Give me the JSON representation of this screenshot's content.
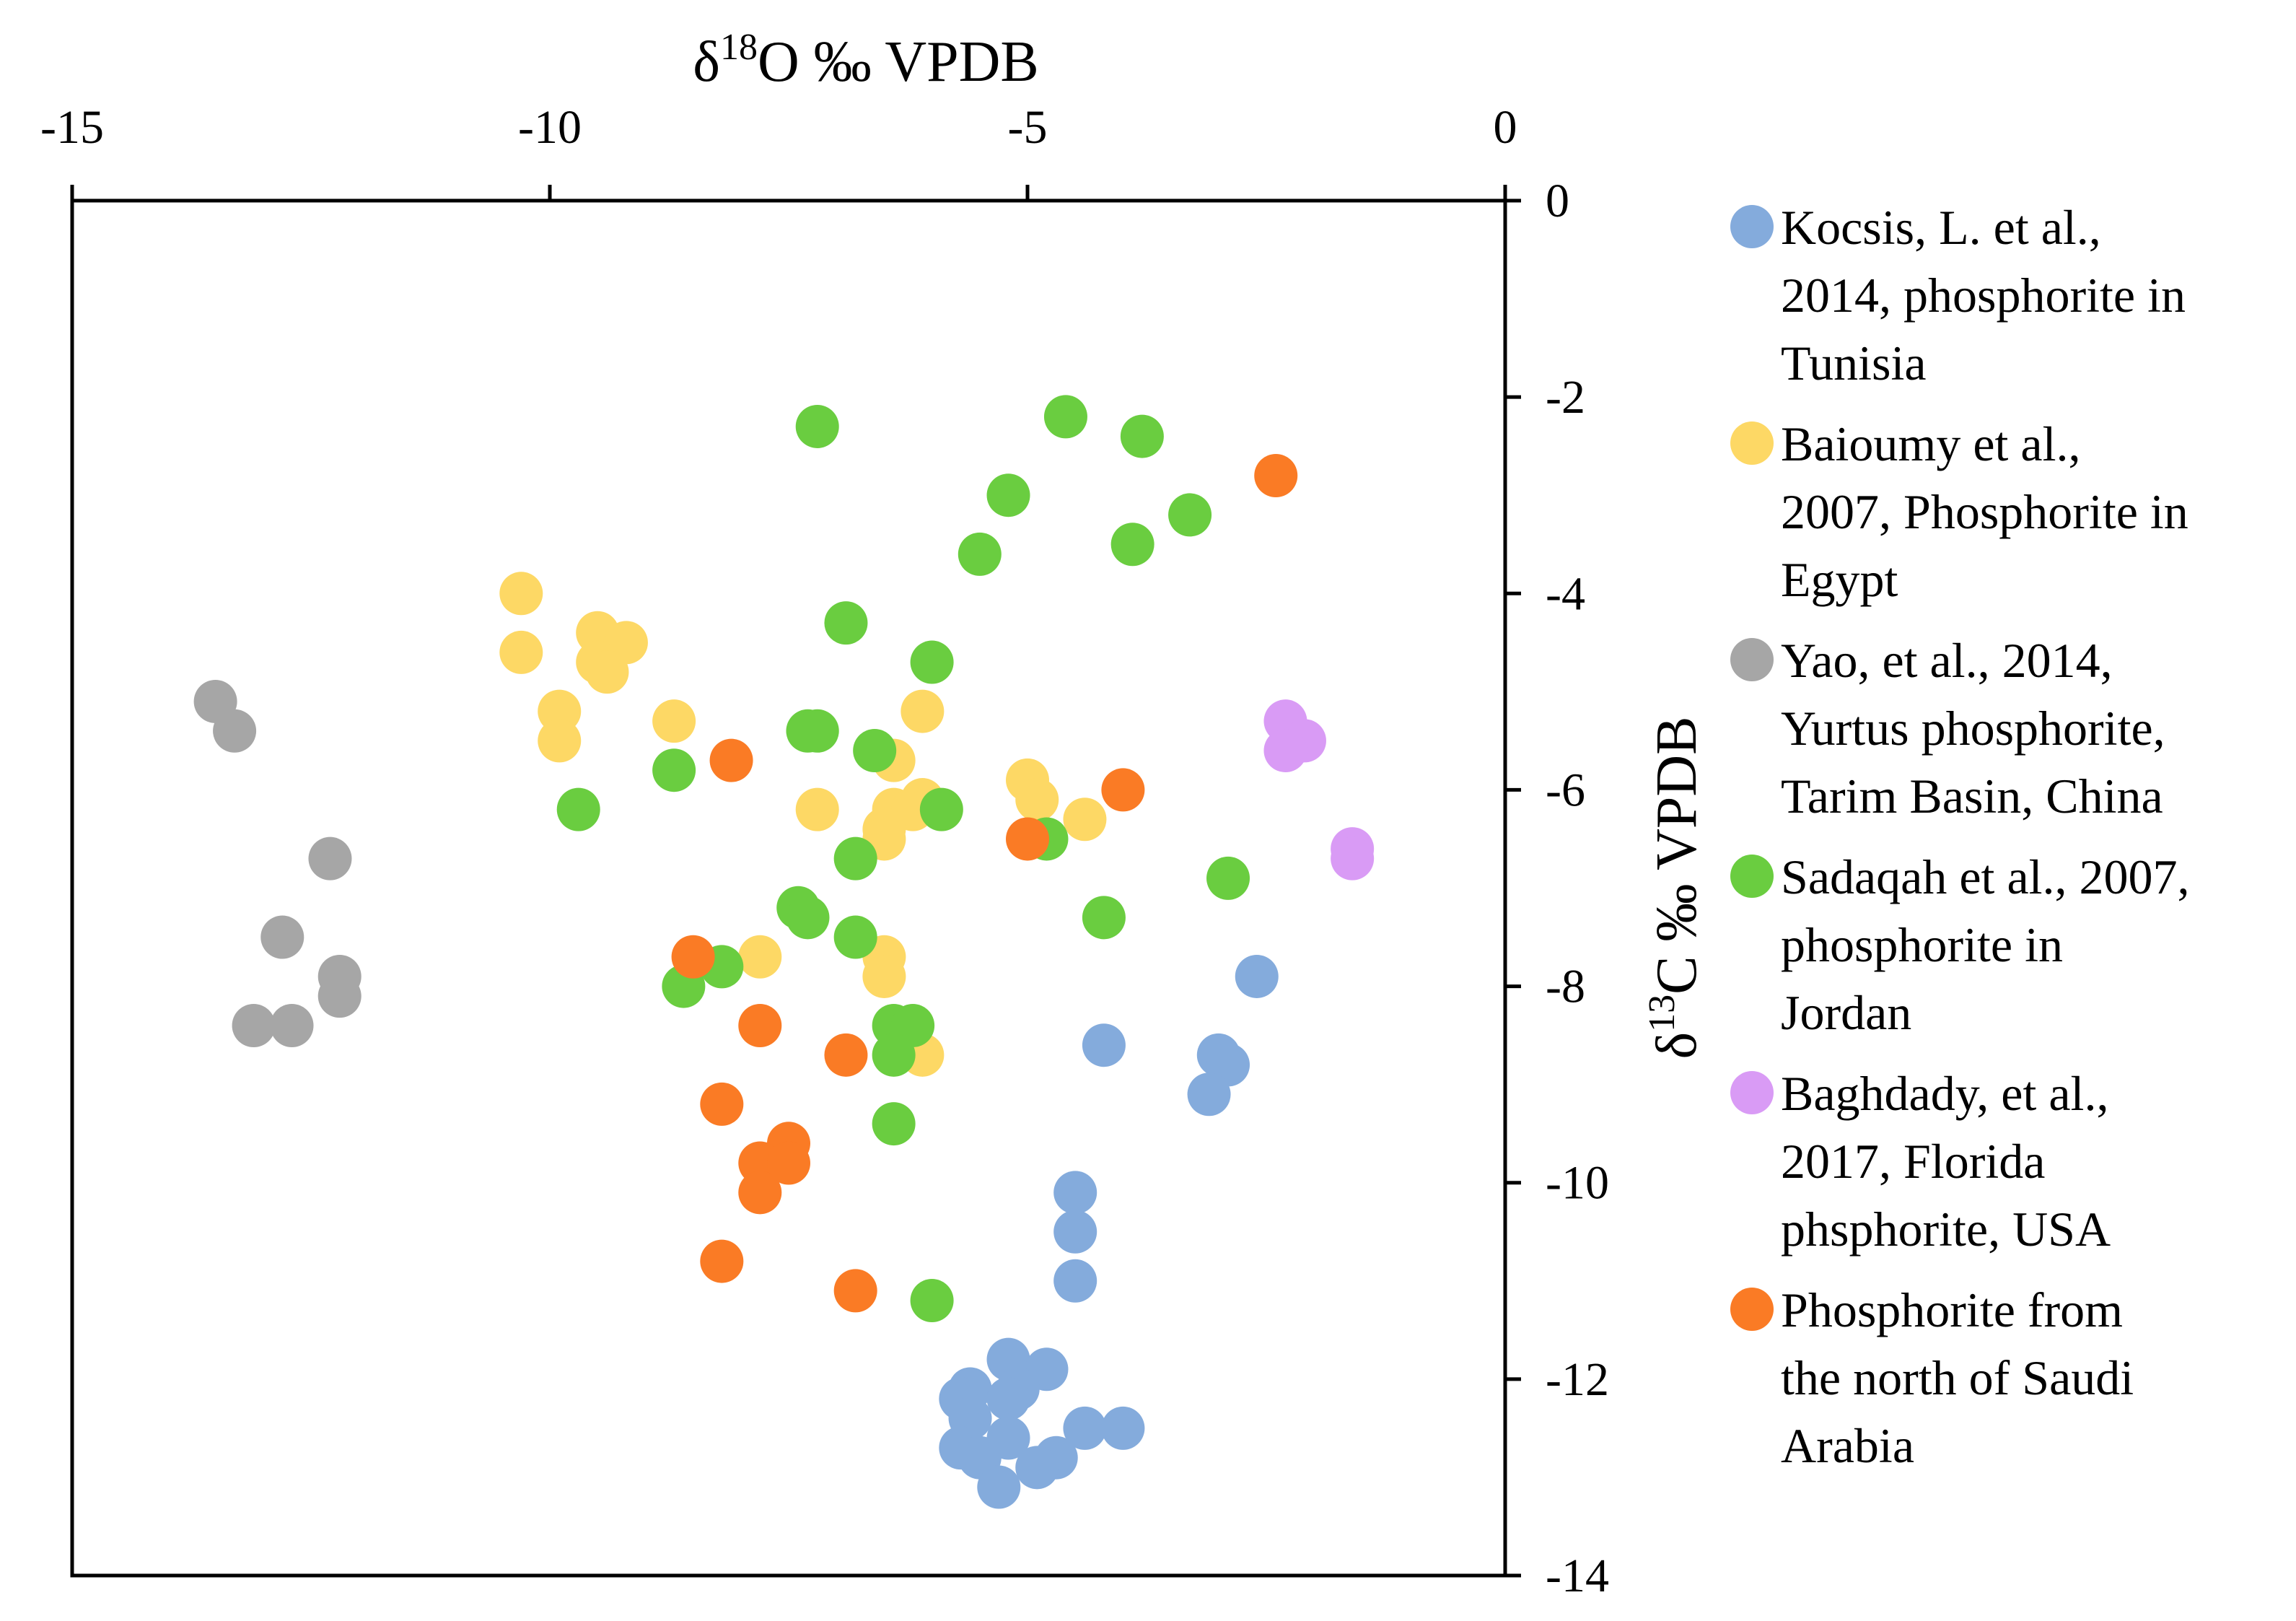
{
  "chart_data": {
    "type": "scatter",
    "title": "",
    "xlabel": {
      "pre": "δ",
      "sup": "18",
      "post": "O ‰  VPDB"
    },
    "ylabel": {
      "pre": "δ",
      "sup": "13",
      "post": "C ‰  VPDB"
    },
    "xlim": [
      -15,
      0
    ],
    "ylim": [
      -14,
      0
    ],
    "x_ticks": [
      {
        "value": -15,
        "label": "-15"
      },
      {
        "value": -10,
        "label": "-10"
      },
      {
        "value": -5,
        "label": "-5"
      },
      {
        "value": 0,
        "label": "0"
      }
    ],
    "y_ticks": [
      {
        "value": 0,
        "label": "0"
      },
      {
        "value": -2,
        "label": "-2"
      },
      {
        "value": -4,
        "label": "-4"
      },
      {
        "value": -6,
        "label": "-6"
      },
      {
        "value": -8,
        "label": "-8"
      },
      {
        "value": -10,
        "label": "-10"
      },
      {
        "value": -12,
        "label": "-12"
      },
      {
        "value": -14,
        "label": "-14"
      }
    ],
    "x_axis_position": "top",
    "y_axis_position": "right",
    "grid": false,
    "legend_position": "right",
    "series": [
      {
        "name": "Kocsis, L.  et al., 2014, phosphorite in Tunisia",
        "legend_lines": [
          "Kocsis, L.  et al.,",
          "2014, phosphorite in",
          "Tunisia"
        ],
        "color": "#84abdc",
        "points": [
          [
            -4.2,
            -8.6
          ],
          [
            -2.6,
            -7.9
          ],
          [
            -3.0,
            -8.7
          ],
          [
            -2.9,
            -8.8
          ],
          [
            -3.1,
            -9.1
          ],
          [
            -4.5,
            -10.1
          ],
          [
            -4.5,
            -10.5
          ],
          [
            -4.5,
            -11.0
          ],
          [
            -5.2,
            -11.8
          ],
          [
            -4.8,
            -11.9
          ],
          [
            -5.6,
            -12.1
          ],
          [
            -5.7,
            -12.2
          ],
          [
            -5.1,
            -12.1
          ],
          [
            -5.2,
            -12.2
          ],
          [
            -5.6,
            -12.4
          ],
          [
            -4.4,
            -12.5
          ],
          [
            -4.0,
            -12.5
          ],
          [
            -5.7,
            -12.7
          ],
          [
            -5.2,
            -12.6
          ],
          [
            -5.5,
            -12.8
          ],
          [
            -4.7,
            -12.8
          ],
          [
            -4.9,
            -12.9
          ],
          [
            -5.3,
            -13.1
          ]
        ]
      },
      {
        "name": "Baioumy et al., 2007, Phosphorite in Egypt",
        "legend_lines": [
          "Baioumy et al.,",
          "2007, Phosphorite in",
          "Egypt"
        ],
        "color": "#fdd865",
        "points": [
          [
            -10.3,
            -4.0
          ],
          [
            -10.3,
            -4.6
          ],
          [
            -9.5,
            -4.4
          ],
          [
            -9.2,
            -4.5
          ],
          [
            -9.5,
            -4.7
          ],
          [
            -9.4,
            -4.8
          ],
          [
            -9.9,
            -5.2
          ],
          [
            -9.9,
            -5.5
          ],
          [
            -8.7,
            -5.3
          ],
          [
            -6.1,
            -5.2
          ],
          [
            -6.4,
            -5.7
          ],
          [
            -6.1,
            -6.1
          ],
          [
            -7.2,
            -6.2
          ],
          [
            -6.4,
            -6.2
          ],
          [
            -6.2,
            -6.2
          ],
          [
            -6.5,
            -6.4
          ],
          [
            -6.5,
            -6.5
          ],
          [
            -5.0,
            -5.9
          ],
          [
            -4.9,
            -6.1
          ],
          [
            -4.4,
            -6.3
          ],
          [
            -7.8,
            -7.7
          ],
          [
            -6.5,
            -7.7
          ],
          [
            -6.5,
            -7.9
          ],
          [
            -6.1,
            -8.7
          ]
        ]
      },
      {
        "name": "Yao, et al., 2014, Yurtus phosphorite, Tarim Basin, China",
        "legend_lines": [
          "Yao, et al., 2014,",
          "Yurtus phosphorite,",
          "Tarim Basin, China"
        ],
        "color": "#a6a6a6",
        "points": [
          [
            -13.5,
            -5.1
          ],
          [
            -13.3,
            -5.4
          ],
          [
            -12.3,
            -6.7
          ],
          [
            -12.8,
            -7.5
          ],
          [
            -12.2,
            -7.9
          ],
          [
            -12.2,
            -8.1
          ],
          [
            -13.1,
            -8.4
          ],
          [
            -12.7,
            -8.4
          ]
        ]
      },
      {
        "name": "Sadaqah et al., 2007, phosphorite in Jordan",
        "legend_lines": [
          "Sadaqah et al., 2007,",
          "phosphorite in",
          "Jordan"
        ],
        "color": "#6acd40",
        "points": [
          [
            -7.2,
            -2.3
          ],
          [
            -4.6,
            -2.2
          ],
          [
            -3.8,
            -2.4
          ],
          [
            -5.2,
            -3.0
          ],
          [
            -3.3,
            -3.2
          ],
          [
            -5.5,
            -3.6
          ],
          [
            -3.9,
            -3.5
          ],
          [
            -6.9,
            -4.3
          ],
          [
            -6.0,
            -4.7
          ],
          [
            -7.3,
            -5.4
          ],
          [
            -7.2,
            -5.4
          ],
          [
            -6.6,
            -5.6
          ],
          [
            -8.7,
            -5.8
          ],
          [
            -9.7,
            -6.2
          ],
          [
            -5.9,
            -6.2
          ],
          [
            -6.8,
            -6.7
          ],
          [
            -4.8,
            -6.5
          ],
          [
            -2.9,
            -6.9
          ],
          [
            -7.4,
            -7.2
          ],
          [
            -7.3,
            -7.3
          ],
          [
            -4.2,
            -7.3
          ],
          [
            -6.8,
            -7.5
          ],
          [
            -8.2,
            -7.8
          ],
          [
            -8.6,
            -8.0
          ],
          [
            -6.4,
            -8.4
          ],
          [
            -6.2,
            -8.4
          ],
          [
            -6.4,
            -8.7
          ],
          [
            -6.4,
            -9.4
          ],
          [
            -6.0,
            -11.2
          ]
        ]
      },
      {
        "name": "Baghdady, et al., 2017, Florida phsphorite, USA",
        "legend_lines": [
          "Baghdady, et al.,",
          "2017, Florida",
          "phsphorite, USA"
        ],
        "color": "#d99bf5",
        "points": [
          [
            -2.3,
            -5.3
          ],
          [
            -2.1,
            -5.5
          ],
          [
            -2.3,
            -5.6
          ],
          [
            -1.6,
            -6.6
          ],
          [
            -1.6,
            -6.7
          ]
        ]
      },
      {
        "name": "Phosphorite from the north of Saudi Arabia",
        "legend_lines": [
          "Phosphorite from",
          "the north of Saudi",
          "Arabia"
        ],
        "color": "#fa7b25",
        "points": [
          [
            -2.4,
            -2.8
          ],
          [
            -8.1,
            -5.7
          ],
          [
            -4.0,
            -6.0
          ],
          [
            -5.0,
            -6.5
          ],
          [
            -8.5,
            -7.7
          ],
          [
            -7.8,
            -8.4
          ],
          [
            -6.9,
            -8.7
          ],
          [
            -8.2,
            -9.2
          ],
          [
            -7.5,
            -9.6
          ],
          [
            -7.8,
            -9.8
          ],
          [
            -7.5,
            -9.8
          ],
          [
            -7.8,
            -10.1
          ],
          [
            -8.2,
            -10.8
          ],
          [
            -6.8,
            -11.1
          ]
        ]
      }
    ]
  }
}
